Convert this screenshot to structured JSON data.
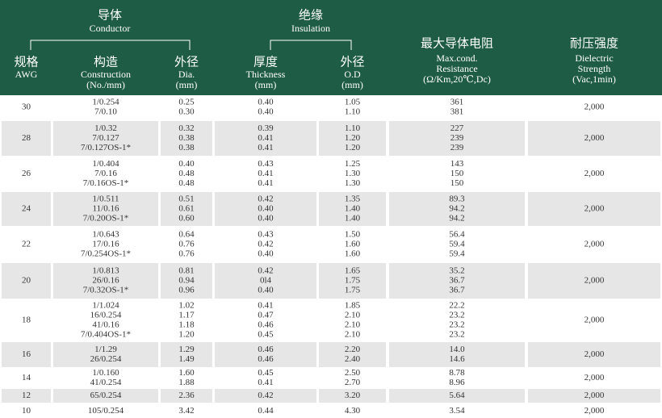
{
  "header": {
    "groups": [
      {
        "zh": "导体",
        "en": "Conductor"
      },
      {
        "zh": "绝缘",
        "en": "Insulation"
      }
    ],
    "columns": [
      {
        "zh": "规格",
        "lines": [
          "AWG"
        ]
      },
      {
        "zh": "构造",
        "lines": [
          "Construction",
          "(No./mm)"
        ]
      },
      {
        "zh": "外径",
        "lines": [
          "Dia.",
          "(mm)"
        ]
      },
      {
        "zh": "厚度",
        "lines": [
          "Thickness",
          "(mm)"
        ]
      },
      {
        "zh": "外径",
        "lines": [
          "O.D",
          "(mm)"
        ]
      },
      {
        "zh": "最大导体电阻",
        "lines": [
          "Max.cond.",
          "Resistance",
          "(Ω/Km,20℃,Dc)"
        ]
      },
      {
        "zh": "耐压强度",
        "lines": [
          "Dielectric",
          "Strength",
          "(Vac,1min)"
        ]
      }
    ]
  },
  "table": {
    "rows": [
      {
        "awg": "30",
        "construction": [
          "1/0.254",
          "7/0.10"
        ],
        "dia": [
          "0.25",
          "0.30"
        ],
        "thickness": [
          "0.40",
          "0.40"
        ],
        "od": [
          "1.05",
          "1.10"
        ],
        "resistance": [
          "361",
          "381"
        ],
        "dielectric": "2,000"
      },
      {
        "awg": "28",
        "construction": [
          "1/0.32",
          "7/0.127",
          "7/0.127OS-1*"
        ],
        "dia": [
          "0.32",
          "0.38",
          "0.38"
        ],
        "thickness": [
          "0.39",
          "0.41",
          "0.41"
        ],
        "od": [
          "1.10",
          "1.20",
          "1.20"
        ],
        "resistance": [
          "227",
          "239",
          "239"
        ],
        "dielectric": "2,000"
      },
      {
        "awg": "26",
        "construction": [
          "1/0.404",
          "7/0.16",
          "7/0.16OS-1*"
        ],
        "dia": [
          "0.40",
          "0.48",
          "0.48"
        ],
        "thickness": [
          "0.43",
          "0.41",
          "0.41"
        ],
        "od": [
          "1.25",
          "1.30",
          "1.30"
        ],
        "resistance": [
          "143",
          "150",
          "150"
        ],
        "dielectric": "2,000"
      },
      {
        "awg": "24",
        "construction": [
          "1/0.511",
          "11/0.16",
          "7/0.20OS-1*"
        ],
        "dia": [
          "0.51",
          "0.61",
          "0.60"
        ],
        "thickness": [
          "0.42",
          "0.40",
          "0.40"
        ],
        "od": [
          "1.35",
          "1.40",
          "1.40"
        ],
        "resistance": [
          "89.3",
          "94.2",
          "94.2"
        ],
        "dielectric": "2,000"
      },
      {
        "awg": "22",
        "construction": [
          "1/0.643",
          "17/0.16",
          "7/0.254OS-1*"
        ],
        "dia": [
          "0.64",
          "0.76",
          "0.76"
        ],
        "thickness": [
          "0.43",
          "0.42",
          "0.40"
        ],
        "od": [
          "1.50",
          "1.60",
          "1.60"
        ],
        "resistance": [
          "56.4",
          "59.4",
          "59.4"
        ],
        "dielectric": "2,000"
      },
      {
        "awg": "20",
        "construction": [
          "1/0.813",
          "26/0.16",
          "7/0.32OS-1*"
        ],
        "dia": [
          "0.81",
          "0.94",
          "0.96"
        ],
        "thickness": [
          "0.42",
          "0l4",
          "0.40"
        ],
        "od": [
          "1.65",
          "1.75",
          "1.75"
        ],
        "resistance": [
          "35.2",
          "36.7",
          "36.7"
        ],
        "dielectric": "2,000"
      },
      {
        "awg": "18",
        "construction": [
          "1/1.024",
          "16/0.254",
          "41/0.16",
          "7/0.404OS-1*"
        ],
        "dia": [
          "1.02",
          "1.17",
          "1.18",
          "1.20"
        ],
        "thickness": [
          "0.41",
          "0.47",
          "0.46",
          "0.45"
        ],
        "od": [
          "1.85",
          "2.10",
          "2.10",
          "2.10"
        ],
        "resistance": [
          "22.2",
          "23.2",
          "23.2",
          "23.2"
        ],
        "dielectric": "2,000"
      },
      {
        "awg": "16",
        "construction": [
          "1/1.29",
          "26/0.254"
        ],
        "dia": [
          "1.29",
          "1.49"
        ],
        "thickness": [
          "0.46",
          "0.46"
        ],
        "od": [
          "2.20",
          "2.40"
        ],
        "resistance": [
          "14.0",
          "14.6"
        ],
        "dielectric": "2,000"
      },
      {
        "awg": "14",
        "construction": [
          "1/0.160",
          "41/0.254"
        ],
        "dia": [
          "1.60",
          "1.88"
        ],
        "thickness": [
          "0.45",
          "0.41"
        ],
        "od": [
          "2.50",
          "2.70"
        ],
        "resistance": [
          "8.78",
          "8.96"
        ],
        "dielectric": "2,000"
      },
      {
        "awg": "12",
        "construction": [
          "65/0.254"
        ],
        "dia": [
          "2.36"
        ],
        "thickness": [
          "0.42"
        ],
        "od": [
          "3.20"
        ],
        "resistance": [
          "5.64"
        ],
        "dielectric": "2,000"
      },
      {
        "awg": "10",
        "construction": [
          "105/0.254"
        ],
        "dia": [
          "3.42"
        ],
        "thickness": [
          "0.44"
        ],
        "od": [
          "4.30"
        ],
        "resistance": [
          "3.54"
        ],
        "dielectric": "2,000"
      }
    ]
  }
}
